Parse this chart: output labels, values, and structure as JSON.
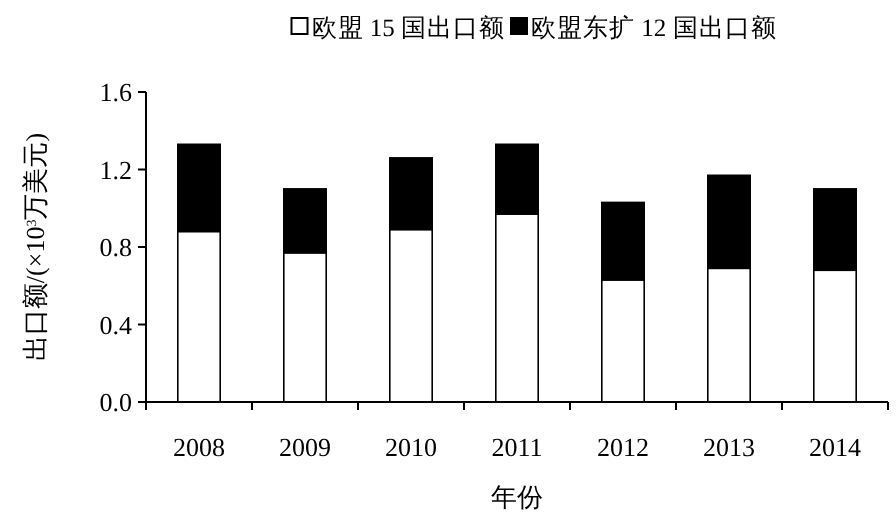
{
  "chart_data": {
    "type": "bar",
    "stacked": true,
    "xlabel": "年份",
    "ylabel": "出口额/(×10$^{3}$万美元)",
    "categories": [
      "2008",
      "2009",
      "2010",
      "2011",
      "2012",
      "2013",
      "2014"
    ],
    "series": [
      {
        "name": "欧盟 15 国出口额",
        "color": "#ffffff",
        "values": [
          0.88,
          0.77,
          0.89,
          0.97,
          0.63,
          0.69,
          0.68
        ]
      },
      {
        "name": "欧盟东扩 12 国出口额",
        "color": "#000000",
        "values": [
          0.45,
          0.33,
          0.37,
          0.36,
          0.4,
          0.48,
          0.42
        ]
      }
    ],
    "ylim": [
      0,
      1.6
    ],
    "yticks": [
      {
        "value": 0,
        "label": "0.0"
      },
      {
        "value": 0.4,
        "label": "0.4"
      },
      {
        "value": 0.8,
        "label": "0.8"
      },
      {
        "value": 1.2,
        "label": "1.2"
      },
      {
        "value": 1.6,
        "label": "1.6"
      }
    ],
    "legend": "top",
    "grid": false
  }
}
